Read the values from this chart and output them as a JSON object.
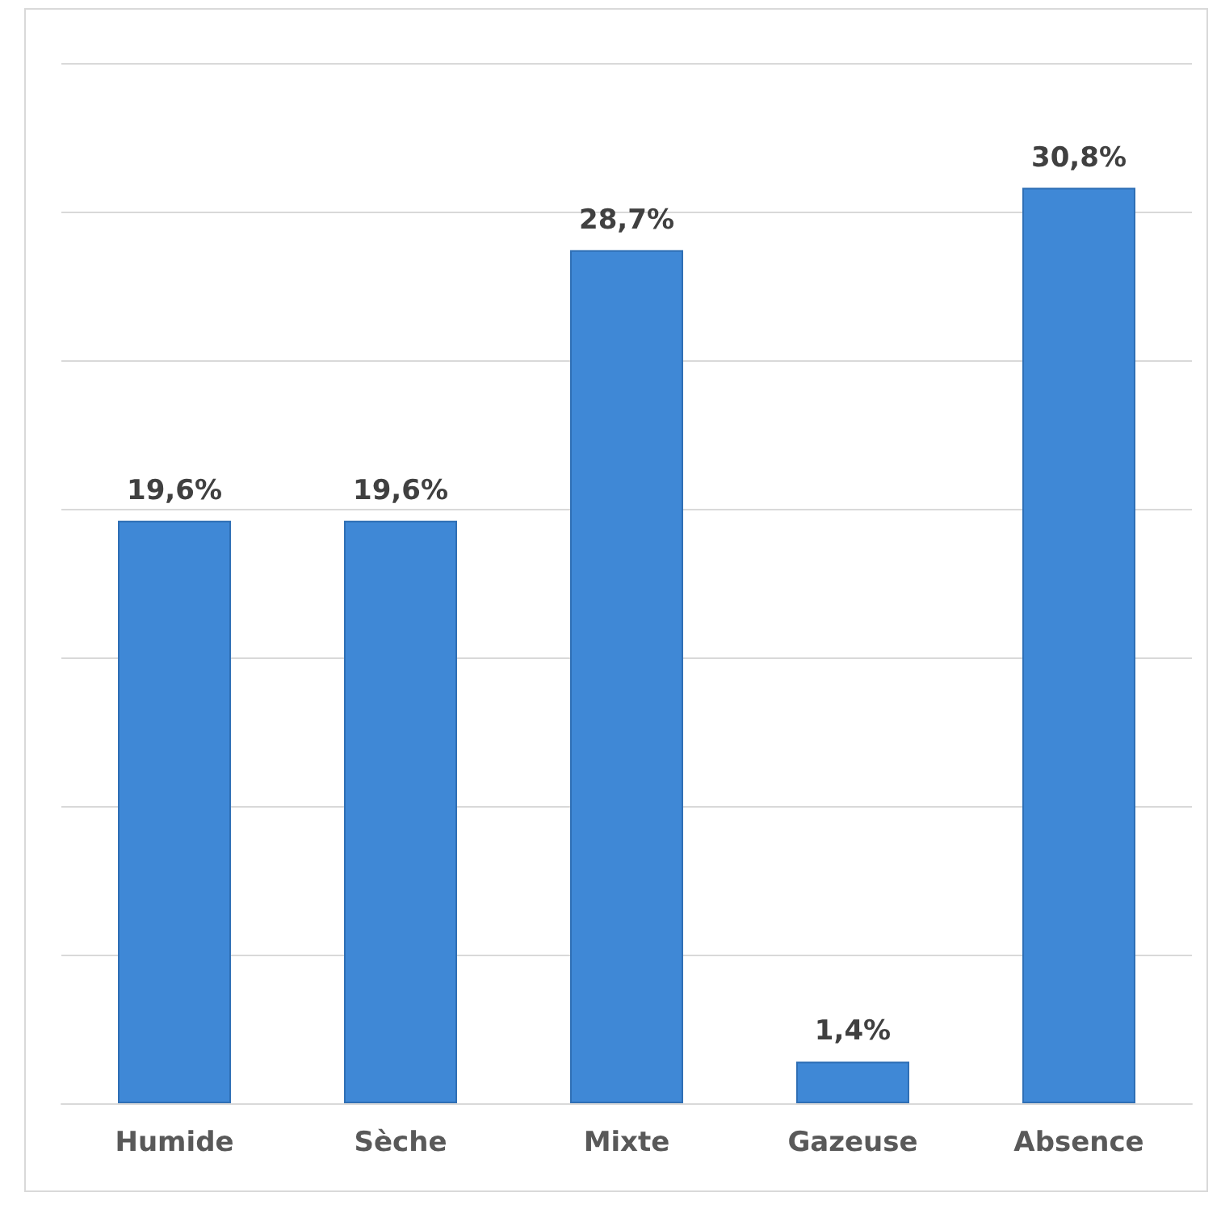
{
  "chart_data": {
    "type": "bar",
    "categories": [
      "Humide",
      "Sèche",
      "Mixte",
      "Gazeuse",
      "Absence"
    ],
    "values": [
      19.6,
      19.6,
      28.7,
      1.4,
      30.8
    ],
    "value_labels": [
      "19,6%",
      "19,6%",
      "28,7%",
      "1,4%",
      "30,8%"
    ],
    "color": "#3f88d6",
    "ylim": [
      0,
      35
    ],
    "yticks": [
      {
        "value": 0,
        "label": null
      },
      {
        "value": 5,
        "label": null
      },
      {
        "value": 10,
        "label": null
      },
      {
        "value": 15,
        "label": null
      },
      {
        "value": 20,
        "label": null
      },
      {
        "value": 25,
        "label": null
      },
      {
        "value": 30,
        "label": null
      },
      {
        "value": 35,
        "label": null
      }
    ],
    "grid": "y",
    "tick_labels": "x"
  }
}
